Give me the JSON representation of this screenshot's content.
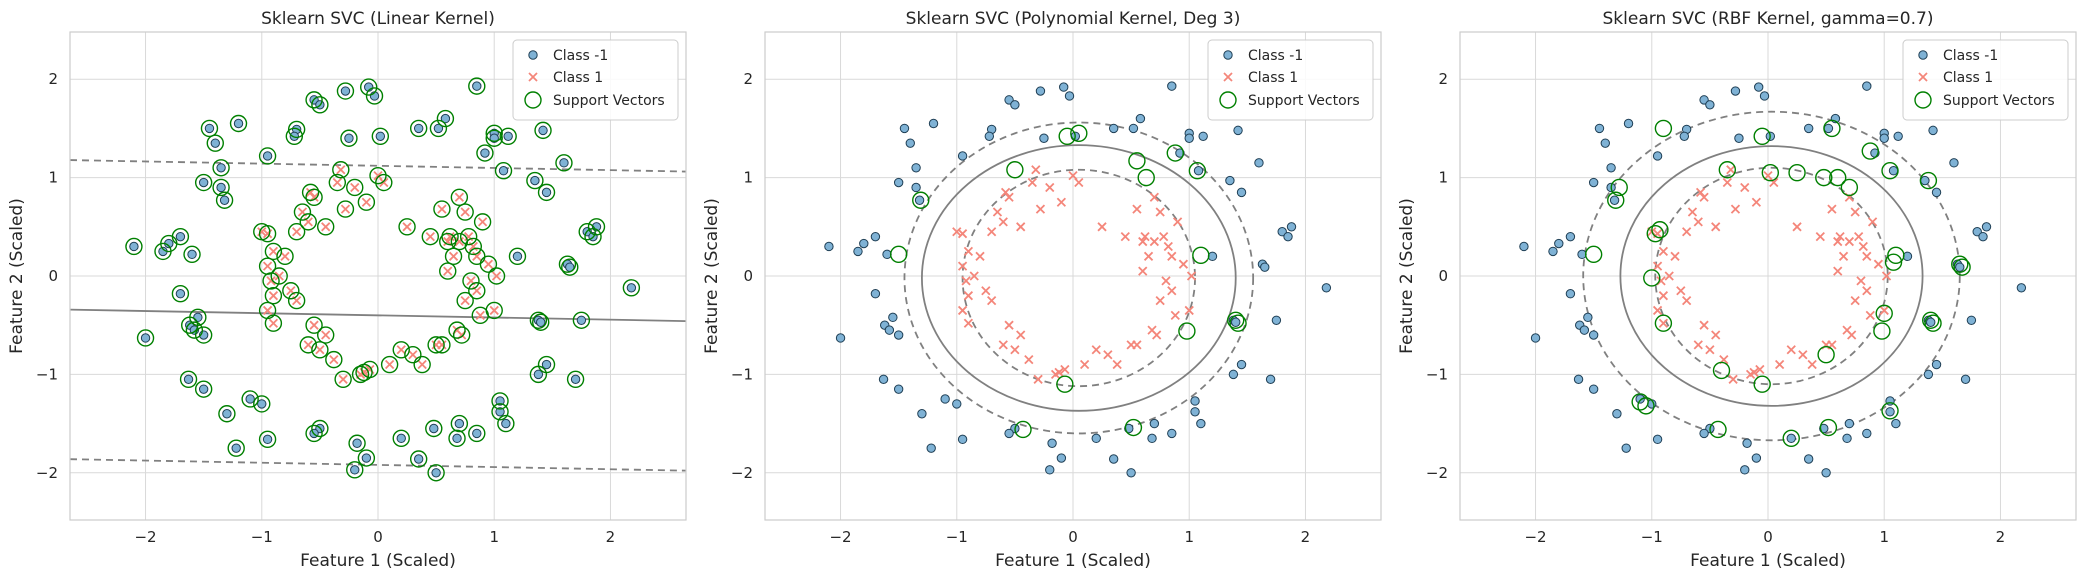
{
  "figure": {
    "background": "#ffffff"
  },
  "colors": {
    "class_neg_fill": "#7fb2d5",
    "class_neg_edge": "#1f3f55",
    "class_pos": "#f4867a",
    "support_vector": "#008000",
    "boundary": "#808080",
    "grid": "#d9d9d9",
    "frame": "#cccccc"
  },
  "chart_data": [
    {
      "type": "scatter",
      "title": "Sklearn SVC (Linear Kernel)",
      "xlabel": "Feature 1 (Scaled)",
      "ylabel": "Feature 2 (Scaled)",
      "xlim": [
        -2.65,
        2.65
      ],
      "ylim": [
        -2.48,
        2.48
      ],
      "xticks": [
        -2,
        -1,
        0,
        1,
        2
      ],
      "yticks": [
        -2,
        -1,
        0,
        1,
        2
      ],
      "xticklabels": [
        "−2",
        "−1",
        "0",
        "1",
        "2"
      ],
      "yticklabels": [
        "−2",
        "−1",
        "0",
        "1",
        "2"
      ],
      "grid": true,
      "legend": {
        "placement": "top-right",
        "entries": [
          "Class -1",
          "Class 1",
          "Support Vectors"
        ]
      },
      "decision_boundary": {
        "kind": "line",
        "slope": -0.022,
        "intercept": -0.4,
        "margin": 1.52
      },
      "support_vectors": "all"
    },
    {
      "type": "scatter",
      "title": "Sklearn SVC (Polynomial Kernel, Deg 3)",
      "xlabel": "Feature 1 (Scaled)",
      "ylabel": "Feature 2 (Scaled)",
      "xlim": [
        -2.65,
        2.65
      ],
      "ylim": [
        -2.48,
        2.48
      ],
      "xticks": [
        -2,
        -1,
        0,
        1,
        2
      ],
      "yticks": [
        -2,
        -1,
        0,
        1,
        2
      ],
      "xticklabels": [
        "−2",
        "−1",
        "0",
        "1",
        "2"
      ],
      "yticklabels": [
        "−2",
        "−1",
        "0",
        "1",
        "2"
      ],
      "grid": true,
      "legend": {
        "placement": "top-right",
        "entries": [
          "Class -1",
          "Class 1",
          "Support Vectors"
        ]
      },
      "decision_boundary": {
        "kind": "ellipse",
        "cx": 0.05,
        "cy": -0.02,
        "rx": 1.35,
        "ry": 1.35,
        "margin_inner": [
          1.0,
          1.1
        ],
        "margin_outer": [
          1.5,
          1.58
        ]
      },
      "support_vectors": [
        [
          -0.05,
          1.42
        ],
        [
          0.05,
          1.45
        ],
        [
          -0.5,
          1.08
        ],
        [
          0.55,
          1.17
        ],
        [
          0.63,
          1.0
        ],
        [
          0.88,
          1.25
        ],
        [
          1.07,
          1.07
        ],
        [
          -1.31,
          0.77
        ],
        [
          -1.5,
          0.22
        ],
        [
          1.1,
          0.21
        ],
        [
          0.98,
          -0.56
        ],
        [
          1.4,
          -0.45
        ],
        [
          1.42,
          -0.48
        ],
        [
          -0.07,
          -1.1
        ],
        [
          -0.43,
          -1.56
        ],
        [
          0.52,
          -1.54
        ]
      ]
    },
    {
      "type": "scatter",
      "title": "Sklearn SVC (RBF Kernel, gamma=0.7)",
      "xlabel": "Feature 1 (Scaled)",
      "ylabel": "Feature 2 (Scaled)",
      "xlim": [
        -2.65,
        2.65
      ],
      "ylim": [
        -2.48,
        2.48
      ],
      "xticks": [
        -2,
        -1,
        0,
        1,
        2
      ],
      "yticks": [
        -2,
        -1,
        0,
        1,
        2
      ],
      "xticklabels": [
        "−2",
        "−1",
        "0",
        "1",
        "2"
      ],
      "yticklabels": [
        "−2",
        "−1",
        "0",
        "1",
        "2"
      ],
      "grid": true,
      "legend": {
        "placement": "top-right",
        "entries": [
          "Class -1",
          "Class 1",
          "Support Vectors"
        ]
      },
      "decision_boundary": {
        "kind": "ellipse",
        "cx": 0.03,
        "cy": 0.0,
        "rx": 1.3,
        "ry": 1.32,
        "margin_inner": [
          1.0,
          1.1
        ],
        "margin_outer": [
          1.62,
          1.67
        ]
      },
      "support_vectors": [
        [
          -0.05,
          1.42
        ],
        [
          0.02,
          1.05
        ],
        [
          -0.35,
          1.08
        ],
        [
          0.25,
          1.05
        ],
        [
          -0.9,
          1.5
        ],
        [
          0.55,
          1.5
        ],
        [
          0.48,
          1.0
        ],
        [
          0.6,
          1.0
        ],
        [
          0.7,
          0.9
        ],
        [
          0.88,
          1.27
        ],
        [
          1.05,
          1.07
        ],
        [
          1.38,
          0.97
        ],
        [
          -1.28,
          0.9
        ],
        [
          -1.31,
          0.77
        ],
        [
          -1.5,
          0.22
        ],
        [
          -0.93,
          0.47
        ],
        [
          -0.97,
          0.43
        ],
        [
          1.1,
          0.21
        ],
        [
          1.08,
          0.14
        ],
        [
          1.65,
          0.12
        ],
        [
          1.67,
          0.09
        ],
        [
          -1.0,
          -0.02
        ],
        [
          -0.9,
          -0.48
        ],
        [
          1.0,
          -0.38
        ],
        [
          0.98,
          -0.56
        ],
        [
          1.4,
          -0.45
        ],
        [
          1.42,
          -0.48
        ],
        [
          -0.4,
          -0.96
        ],
        [
          0.5,
          -0.8
        ],
        [
          -1.1,
          -1.28
        ],
        [
          -1.05,
          -1.32
        ],
        [
          -0.43,
          -1.56
        ],
        [
          0.52,
          -1.54
        ],
        [
          0.2,
          -1.65
        ],
        [
          1.05,
          -1.37
        ],
        [
          -0.05,
          -1.1
        ]
      ]
    }
  ],
  "points_neg": [
    [
      -2.1,
      0.3
    ],
    [
      -2.0,
      -0.63
    ],
    [
      -1.85,
      0.25
    ],
    [
      -1.7,
      0.4
    ],
    [
      -1.7,
      -0.18
    ],
    [
      -1.63,
      -1.05
    ],
    [
      -1.8,
      0.33
    ],
    [
      -1.55,
      -0.42
    ],
    [
      -1.6,
      0.22
    ],
    [
      -1.5,
      0.95
    ],
    [
      -1.45,
      1.5
    ],
    [
      -1.4,
      1.35
    ],
    [
      -1.35,
      1.1
    ],
    [
      -1.35,
      0.9
    ],
    [
      -1.5,
      -0.6
    ],
    [
      -1.5,
      -1.15
    ],
    [
      -1.3,
      -1.4
    ],
    [
      -1.22,
      -1.75
    ],
    [
      -1.2,
      1.55
    ],
    [
      -1.1,
      -1.25
    ],
    [
      -1.0,
      -1.3
    ],
    [
      -0.95,
      1.22
    ],
    [
      -0.95,
      -1.66
    ],
    [
      -0.7,
      1.49
    ],
    [
      -0.72,
      1.42
    ],
    [
      -0.55,
      1.79
    ],
    [
      -0.5,
      1.74
    ],
    [
      -0.5,
      -1.55
    ],
    [
      -0.55,
      -1.6
    ],
    [
      -0.28,
      1.88
    ],
    [
      -0.2,
      -1.97
    ],
    [
      -0.18,
      -1.7
    ],
    [
      -0.1,
      -1.85
    ],
    [
      -0.08,
      1.92
    ],
    [
      -0.03,
      1.83
    ],
    [
      -0.25,
      1.4
    ],
    [
      0.02,
      1.42
    ],
    [
      0.2,
      -1.65
    ],
    [
      0.35,
      -1.86
    ],
    [
      0.5,
      -2.0
    ],
    [
      0.35,
      1.5
    ],
    [
      0.48,
      -1.55
    ],
    [
      0.52,
      1.5
    ],
    [
      0.58,
      1.6
    ],
    [
      0.7,
      -1.5
    ],
    [
      0.68,
      -1.65
    ],
    [
      0.85,
      1.93
    ],
    [
      0.85,
      -1.6
    ],
    [
      0.92,
      1.25
    ],
    [
      1.0,
      1.45
    ],
    [
      1.0,
      1.4
    ],
    [
      1.05,
      -1.38
    ],
    [
      1.05,
      -1.27
    ],
    [
      1.1,
      -1.5
    ],
    [
      1.12,
      1.42
    ],
    [
      1.2,
      0.2
    ],
    [
      1.35,
      0.97
    ],
    [
      1.38,
      -0.45
    ],
    [
      1.4,
      -0.47
    ],
    [
      1.42,
      1.48
    ],
    [
      1.45,
      -0.9
    ],
    [
      1.45,
      0.85
    ],
    [
      1.38,
      -1.0
    ],
    [
      1.6,
      1.15
    ],
    [
      1.63,
      0.12
    ],
    [
      1.65,
      0.09
    ],
    [
      1.7,
      -1.05
    ],
    [
      1.75,
      -0.45
    ],
    [
      1.8,
      0.45
    ],
    [
      1.85,
      0.4
    ],
    [
      1.88,
      0.5
    ],
    [
      2.18,
      -0.12
    ],
    [
      1.08,
      1.07
    ],
    [
      -1.32,
      0.77
    ],
    [
      -1.62,
      -0.5
    ],
    [
      -1.58,
      -0.55
    ]
  ],
  "points_pos": [
    [
      -1.0,
      0.45
    ],
    [
      -0.95,
      0.43
    ],
    [
      -0.9,
      0.25
    ],
    [
      -0.95,
      0.1
    ],
    [
      -0.92,
      -0.05
    ],
    [
      -0.9,
      -0.2
    ],
    [
      -0.95,
      -0.35
    ],
    [
      -0.9,
      -0.48
    ],
    [
      -0.85,
      0.0
    ],
    [
      -0.8,
      0.2
    ],
    [
      -0.75,
      -0.15
    ],
    [
      -0.7,
      0.45
    ],
    [
      -0.65,
      0.65
    ],
    [
      -0.6,
      0.55
    ],
    [
      -0.58,
      0.85
    ],
    [
      -0.55,
      0.8
    ],
    [
      -0.6,
      -0.7
    ],
    [
      -0.55,
      -0.5
    ],
    [
      -0.5,
      -0.75
    ],
    [
      -0.45,
      0.5
    ],
    [
      -0.45,
      -0.6
    ],
    [
      -0.38,
      -0.85
    ],
    [
      -0.35,
      0.95
    ],
    [
      -0.32,
      1.08
    ],
    [
      -0.28,
      0.68
    ],
    [
      -0.3,
      -1.05
    ],
    [
      -0.2,
      0.9
    ],
    [
      -0.15,
      -1.0
    ],
    [
      -0.12,
      -0.98
    ],
    [
      -0.1,
      0.75
    ],
    [
      -0.07,
      -0.95
    ],
    [
      0.0,
      1.02
    ],
    [
      0.05,
      0.95
    ],
    [
      0.1,
      -0.9
    ],
    [
      0.2,
      -0.75
    ],
    [
      0.25,
      0.5
    ],
    [
      0.3,
      -0.8
    ],
    [
      0.38,
      -0.9
    ],
    [
      0.45,
      0.4
    ],
    [
      0.5,
      -0.7
    ],
    [
      0.55,
      -0.7
    ],
    [
      0.55,
      0.68
    ],
    [
      0.6,
      0.35
    ],
    [
      0.62,
      0.4
    ],
    [
      0.65,
      0.2
    ],
    [
      0.68,
      -0.55
    ],
    [
      0.7,
      0.8
    ],
    [
      0.7,
      0.35
    ],
    [
      0.72,
      -0.6
    ],
    [
      0.75,
      -0.25
    ],
    [
      0.75,
      0.65
    ],
    [
      0.78,
      0.4
    ],
    [
      0.8,
      -0.05
    ],
    [
      0.82,
      0.3
    ],
    [
      0.85,
      -0.15
    ],
    [
      0.85,
      0.2
    ],
    [
      0.88,
      -0.4
    ],
    [
      0.9,
      0.55
    ],
    [
      0.95,
      0.12
    ],
    [
      1.0,
      -0.35
    ],
    [
      1.02,
      0.0
    ],
    [
      0.6,
      0.05
    ],
    [
      -0.7,
      -0.25
    ]
  ]
}
